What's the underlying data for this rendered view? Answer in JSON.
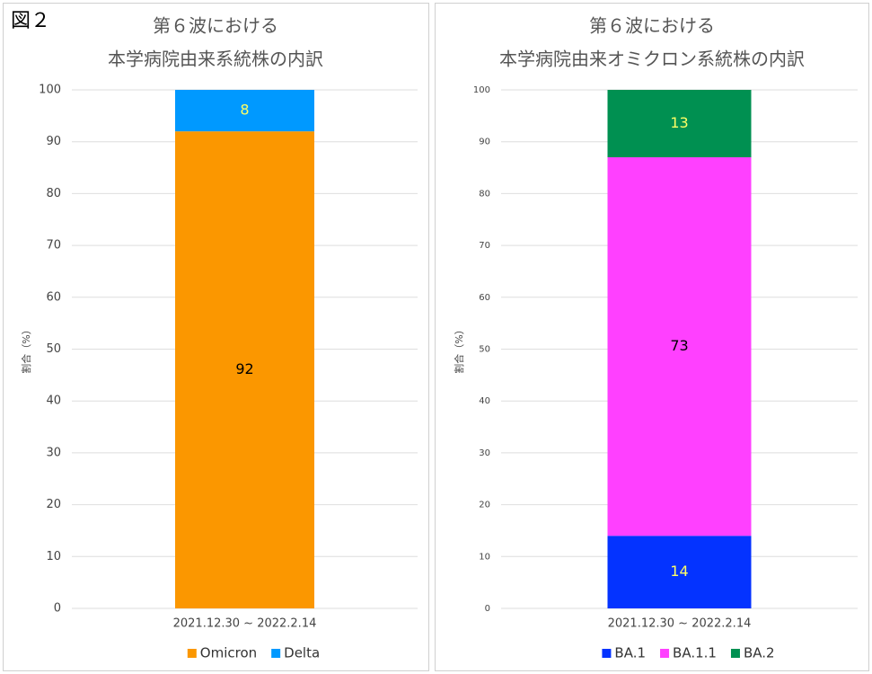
{
  "figure_label": "図２",
  "chart_data": [
    {
      "type": "stacked_bar",
      "title": [
        "第６波における",
        "本学病院由来系統株の内訳"
      ],
      "ylabel": "割合（%）",
      "categories": [
        "2021.12.30 ~ 2022.2.14"
      ],
      "series": [
        {
          "name": "Omicron",
          "color": "#fb9700",
          "label_color": "#000000",
          "values": [
            92
          ]
        },
        {
          "name": "Delta",
          "color": "#0099ff",
          "label_color": "#ffff66",
          "values": [
            8
          ]
        }
      ],
      "ylim": [
        0,
        100
      ],
      "yticks": [
        0,
        10,
        20,
        30,
        40,
        50,
        60,
        70,
        80,
        90,
        100
      ],
      "grid": true,
      "legend": "bottom"
    },
    {
      "type": "stacked_bar",
      "title": [
        "第６波における",
        "本学病院由来オミクロン系統株の内訳"
      ],
      "ylabel": "割合（%）",
      "categories": [
        "2021.12.30 ~ 2022.2.14"
      ],
      "series": [
        {
          "name": "BA.1",
          "color": "#0433ff",
          "label_color": "#ffff66",
          "values": [
            14
          ]
        },
        {
          "name": "BA.1.1",
          "color": "#ff40ff",
          "label_color": "#000000",
          "values": [
            73
          ]
        },
        {
          "name": "BA.2",
          "color": "#009051",
          "label_color": "#ffff66",
          "values": [
            13
          ]
        }
      ],
      "ylim": [
        0,
        100
      ],
      "yticks": [
        0,
        10,
        20,
        30,
        40,
        50,
        60,
        70,
        80,
        90,
        100
      ],
      "grid": true,
      "legend": "bottom"
    }
  ]
}
